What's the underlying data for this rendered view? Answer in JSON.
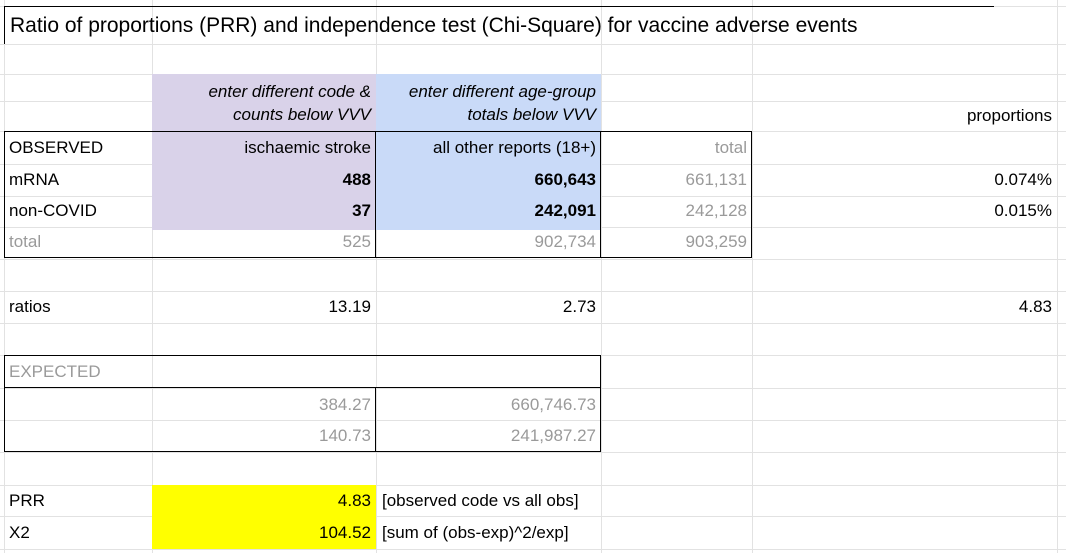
{
  "title": "Ratio of proportions (PRR) and independence test (Chi-Square) for vaccine adverse events",
  "headers": {
    "col_b_line1": "enter different code &",
    "col_b_line2": "counts below VVV",
    "col_c_line1": "enter different age-group",
    "col_c_line2": "totals below VVV",
    "proportions": "proportions"
  },
  "observed": {
    "label": "OBSERVED",
    "col_b": "ischaemic stroke",
    "col_c": "all other reports (18+)",
    "total_label": "total",
    "rows": [
      {
        "label": "mRNA",
        "b": "488",
        "c": "660,643",
        "total": "661,131",
        "proportion": "0.074%"
      },
      {
        "label": "non-COVID",
        "b": "37",
        "c": "242,091",
        "total": "242,128",
        "proportion": "0.015%"
      }
    ],
    "totals_row": {
      "label": "total",
      "b": "525",
      "c": "902,734",
      "total": "903,259"
    }
  },
  "ratios": {
    "label": "ratios",
    "b": "13.19",
    "c": "2.73",
    "proportions": "4.83"
  },
  "expected": {
    "label": "EXPECTED",
    "rows": [
      {
        "b": "384.27",
        "c": "660,746.73"
      },
      {
        "b": "140.73",
        "c": "241,987.27"
      }
    ]
  },
  "prr": {
    "label": "PRR",
    "value": "4.83",
    "note": "[observed code vs all obs]"
  },
  "x2": {
    "label": "X2",
    "value": "104.52",
    "note": "[sum of (obs-exp)^2/exp]"
  },
  "colors": {
    "purple": "#d9d2e9",
    "blue": "#c9daf8",
    "yellow": "#ffff00",
    "gridline": "#e2e2e2"
  }
}
